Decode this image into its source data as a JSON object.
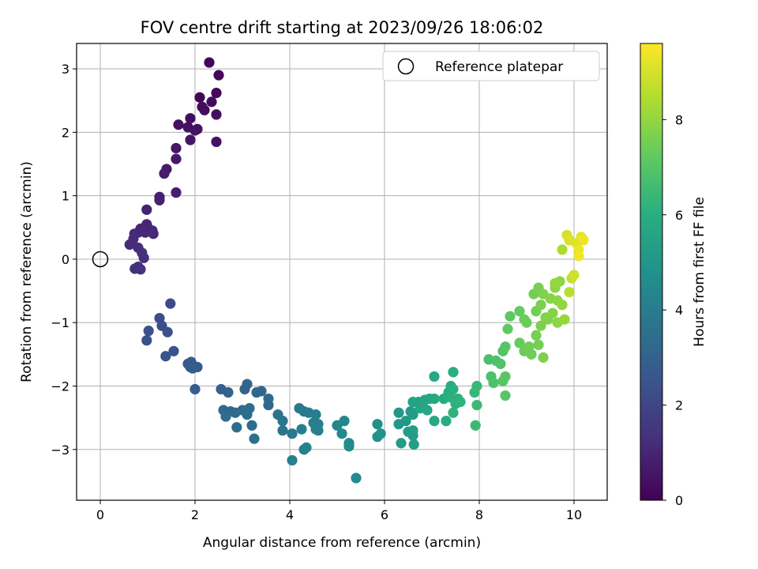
{
  "chart_data": {
    "type": "scatter",
    "title": "FOV centre drift starting at 2023/09/26 18:06:02",
    "xlabel": "Angular distance from reference (arcmin)",
    "ylabel": "Rotation from reference (arcmin)",
    "xlim": [
      -0.5,
      10.7
    ],
    "ylim": [
      -3.8,
      3.4
    ],
    "xticks": [
      "0",
      "2",
      "4",
      "6",
      "8",
      "10"
    ],
    "yticks": [
      "−3",
      "−2",
      "−1",
      "0",
      "1",
      "2",
      "3"
    ],
    "grid": true,
    "legend": {
      "position": "top-right",
      "entries": [
        "Reference platepar"
      ]
    },
    "reference_point": {
      "x": 0,
      "y": 0
    },
    "colorbar": {
      "label": "Hours from first FF file",
      "range": [
        0,
        9.6
      ],
      "ticks": [
        "0",
        "2",
        "4",
        "6",
        "8"
      ],
      "colormap": "viridis"
    },
    "points": [
      [
        2.3,
        3.1,
        0.1
      ],
      [
        2.5,
        2.9,
        0.2
      ],
      [
        2.1,
        2.55,
        0.15
      ],
      [
        2.45,
        2.62,
        0.2
      ],
      [
        2.35,
        2.48,
        0.3
      ],
      [
        2.15,
        2.4,
        0.3
      ],
      [
        2.2,
        2.35,
        0.35
      ],
      [
        2.45,
        2.28,
        0.4
      ],
      [
        1.9,
        2.22,
        0.4
      ],
      [
        1.65,
        2.12,
        0.45
      ],
      [
        1.85,
        2.08,
        0.45
      ],
      [
        2.05,
        2.05,
        0.5
      ],
      [
        2.0,
        2.03,
        0.5
      ],
      [
        1.9,
        1.88,
        0.55
      ],
      [
        2.45,
        1.85,
        0.5
      ],
      [
        1.6,
        1.75,
        0.6
      ],
      [
        1.6,
        1.58,
        0.65
      ],
      [
        1.4,
        1.42,
        0.7
      ],
      [
        1.35,
        1.35,
        0.75
      ],
      [
        1.6,
        1.05,
        0.8
      ],
      [
        1.25,
        0.98,
        0.85
      ],
      [
        1.25,
        0.93,
        0.9
      ],
      [
        0.98,
        0.78,
        0.95
      ],
      [
        0.98,
        0.55,
        1.0
      ],
      [
        1.0,
        0.5,
        1.0
      ],
      [
        0.85,
        0.48,
        1.05
      ],
      [
        0.8,
        0.42,
        1.05
      ],
      [
        1.1,
        0.45,
        1.1
      ],
      [
        0.95,
        0.42,
        1.1
      ],
      [
        1.12,
        0.4,
        1.15
      ],
      [
        0.72,
        0.4,
        1.15
      ],
      [
        0.7,
        0.32,
        1.2
      ],
      [
        0.62,
        0.23,
        1.2
      ],
      [
        0.8,
        0.18,
        1.25
      ],
      [
        0.88,
        0.1,
        1.3
      ],
      [
        0.92,
        0.02,
        1.3
      ],
      [
        0.73,
        -0.15,
        1.35
      ],
      [
        0.8,
        -0.12,
        1.35
      ],
      [
        0.85,
        -0.16,
        1.4
      ],
      [
        1.48,
        -0.7,
        2.2
      ],
      [
        1.25,
        -0.93,
        2.3
      ],
      [
        1.3,
        -1.05,
        2.35
      ],
      [
        1.42,
        -1.15,
        2.4
      ],
      [
        1.02,
        -1.13,
        2.4
      ],
      [
        0.98,
        -1.28,
        2.45
      ],
      [
        1.55,
        -1.45,
        2.5
      ],
      [
        1.38,
        -1.53,
        2.55
      ],
      [
        1.85,
        -1.65,
        2.7
      ],
      [
        1.9,
        -1.7,
        2.75
      ],
      [
        1.95,
        -1.72,
        2.8
      ],
      [
        2.05,
        -1.7,
        2.85
      ],
      [
        1.92,
        -1.62,
        2.8
      ],
      [
        2.0,
        -2.05,
        2.9
      ],
      [
        2.55,
        -2.05,
        3.0
      ],
      [
        2.7,
        -2.1,
        3.05
      ],
      [
        3.05,
        -2.05,
        3.1
      ],
      [
        3.1,
        -1.97,
        3.15
      ],
      [
        3.3,
        -2.1,
        3.2
      ],
      [
        3.4,
        -2.08,
        3.25
      ],
      [
        3.55,
        -2.2,
        3.3
      ],
      [
        3.55,
        -2.3,
        3.3
      ],
      [
        2.6,
        -2.38,
        3.3
      ],
      [
        2.75,
        -2.4,
        3.35
      ],
      [
        2.85,
        -2.42,
        3.35
      ],
      [
        2.65,
        -2.48,
        3.4
      ],
      [
        3.0,
        -2.38,
        3.4
      ],
      [
        3.15,
        -2.35,
        3.45
      ],
      [
        3.1,
        -2.45,
        3.45
      ],
      [
        3.2,
        -2.62,
        3.5
      ],
      [
        2.88,
        -2.65,
        3.5
      ],
      [
        3.25,
        -2.83,
        3.55
      ],
      [
        3.75,
        -2.45,
        3.7
      ],
      [
        3.85,
        -2.55,
        3.75
      ],
      [
        3.85,
        -2.7,
        3.8
      ],
      [
        4.05,
        -2.75,
        3.85
      ],
      [
        4.2,
        -2.35,
        3.9
      ],
      [
        4.3,
        -2.4,
        3.95
      ],
      [
        4.4,
        -2.42,
        4.0
      ],
      [
        4.55,
        -2.45,
        4.05
      ],
      [
        4.5,
        -2.58,
        4.05
      ],
      [
        4.6,
        -2.6,
        4.1
      ],
      [
        4.55,
        -2.68,
        4.1
      ],
      [
        4.6,
        -2.7,
        4.15
      ],
      [
        4.25,
        -2.68,
        4.15
      ],
      [
        4.35,
        -2.97,
        4.2
      ],
      [
        4.3,
        -3.0,
        4.2
      ],
      [
        4.05,
        -3.17,
        4.25
      ],
      [
        5.0,
        -2.62,
        4.4
      ],
      [
        5.15,
        -2.55,
        4.45
      ],
      [
        5.1,
        -2.75,
        4.5
      ],
      [
        5.25,
        -2.9,
        4.55
      ],
      [
        5.25,
        -2.95,
        4.55
      ],
      [
        5.4,
        -3.45,
        4.6
      ],
      [
        5.85,
        -2.6,
        4.8
      ],
      [
        5.85,
        -2.8,
        4.85
      ],
      [
        5.92,
        -2.75,
        4.9
      ],
      [
        6.3,
        -2.42,
        5.1
      ],
      [
        6.3,
        -2.6,
        5.15
      ],
      [
        6.45,
        -2.55,
        5.2
      ],
      [
        6.55,
        -2.4,
        5.25
      ],
      [
        6.6,
        -2.45,
        5.3
      ],
      [
        6.5,
        -2.72,
        5.3
      ],
      [
        6.6,
        -2.78,
        5.35
      ],
      [
        6.6,
        -2.7,
        5.35
      ],
      [
        6.35,
        -2.9,
        5.3
      ],
      [
        6.62,
        -2.92,
        5.4
      ],
      [
        6.6,
        -2.25,
        5.5
      ],
      [
        6.72,
        -2.25,
        5.55
      ],
      [
        6.8,
        -2.3,
        5.6
      ],
      [
        6.85,
        -2.22,
        5.65
      ],
      [
        6.75,
        -2.35,
        5.65
      ],
      [
        6.9,
        -2.38,
        5.7
      ],
      [
        6.95,
        -2.2,
        5.75
      ],
      [
        7.05,
        -2.2,
        5.8
      ],
      [
        7.05,
        -1.85,
        5.8
      ],
      [
        7.05,
        -2.55,
        5.85
      ],
      [
        7.25,
        -2.2,
        5.9
      ],
      [
        7.3,
        -2.55,
        5.95
      ],
      [
        7.35,
        -2.1,
        6.0
      ],
      [
        7.4,
        -2.0,
        6.05
      ],
      [
        7.45,
        -2.05,
        6.05
      ],
      [
        7.4,
        -2.18,
        6.1
      ],
      [
        7.45,
        -1.78,
        6.1
      ],
      [
        7.5,
        -2.28,
        6.15
      ],
      [
        7.55,
        -2.2,
        6.15
      ],
      [
        7.45,
        -2.42,
        6.2
      ],
      [
        7.6,
        -2.25,
        6.2
      ],
      [
        7.9,
        -2.1,
        6.4
      ],
      [
        7.95,
        -2.0,
        6.45
      ],
      [
        7.95,
        -2.3,
        6.5
      ],
      [
        7.92,
        -2.62,
        6.5
      ],
      [
        8.2,
        -1.58,
        6.8
      ],
      [
        8.25,
        -1.85,
        6.85
      ],
      [
        8.3,
        -1.95,
        6.9
      ],
      [
        8.35,
        -1.6,
        6.9
      ],
      [
        8.45,
        -1.65,
        6.95
      ],
      [
        8.5,
        -1.45,
        7.0
      ],
      [
        8.55,
        -1.38,
        7.05
      ],
      [
        8.5,
        -1.92,
        7.05
      ],
      [
        8.55,
        -1.85,
        7.1
      ],
      [
        8.55,
        -2.15,
        7.1
      ],
      [
        8.65,
        -0.9,
        7.2
      ],
      [
        8.6,
        -1.1,
        7.25
      ],
      [
        8.85,
        -0.82,
        7.3
      ],
      [
        8.85,
        -1.32,
        7.35
      ],
      [
        8.95,
        -0.95,
        7.4
      ],
      [
        8.95,
        -1.45,
        7.4
      ],
      [
        9.0,
        -1.0,
        7.45
      ],
      [
        9.05,
        -1.38,
        7.5
      ],
      [
        9.1,
        -1.5,
        7.5
      ],
      [
        9.15,
        -0.55,
        7.55
      ],
      [
        9.2,
        -0.82,
        7.55
      ],
      [
        9.2,
        -1.2,
        7.6
      ],
      [
        9.25,
        -1.35,
        7.6
      ],
      [
        9.25,
        -0.45,
        7.65
      ],
      [
        9.3,
        -0.72,
        7.65
      ],
      [
        9.3,
        -1.05,
        7.7
      ],
      [
        9.35,
        -1.55,
        7.7
      ],
      [
        9.35,
        -0.55,
        7.75
      ],
      [
        9.4,
        -0.92,
        7.75
      ],
      [
        9.45,
        -0.95,
        7.8
      ],
      [
        9.5,
        -0.62,
        7.85
      ],
      [
        9.55,
        -0.85,
        7.85
      ],
      [
        9.6,
        -0.45,
        7.9
      ],
      [
        9.65,
        -0.65,
        7.95
      ],
      [
        9.65,
        -1.0,
        7.95
      ],
      [
        9.7,
        -0.35,
        8.0
      ],
      [
        9.75,
        -0.72,
        8.05
      ],
      [
        9.8,
        -0.95,
        8.1
      ],
      [
        9.6,
        -0.38,
        8.05
      ],
      [
        9.75,
        0.15,
        8.4
      ],
      [
        9.9,
        -0.52,
        8.6
      ],
      [
        9.95,
        -0.3,
        8.8
      ],
      [
        10.0,
        -0.25,
        8.9
      ],
      [
        9.85,
        0.38,
        9.0
      ],
      [
        9.9,
        0.3,
        9.1
      ],
      [
        10.05,
        0.25,
        9.2
      ],
      [
        10.15,
        0.35,
        9.3
      ],
      [
        10.2,
        0.3,
        9.35
      ],
      [
        10.1,
        0.15,
        9.4
      ],
      [
        10.1,
        0.05,
        9.45
      ]
    ]
  }
}
